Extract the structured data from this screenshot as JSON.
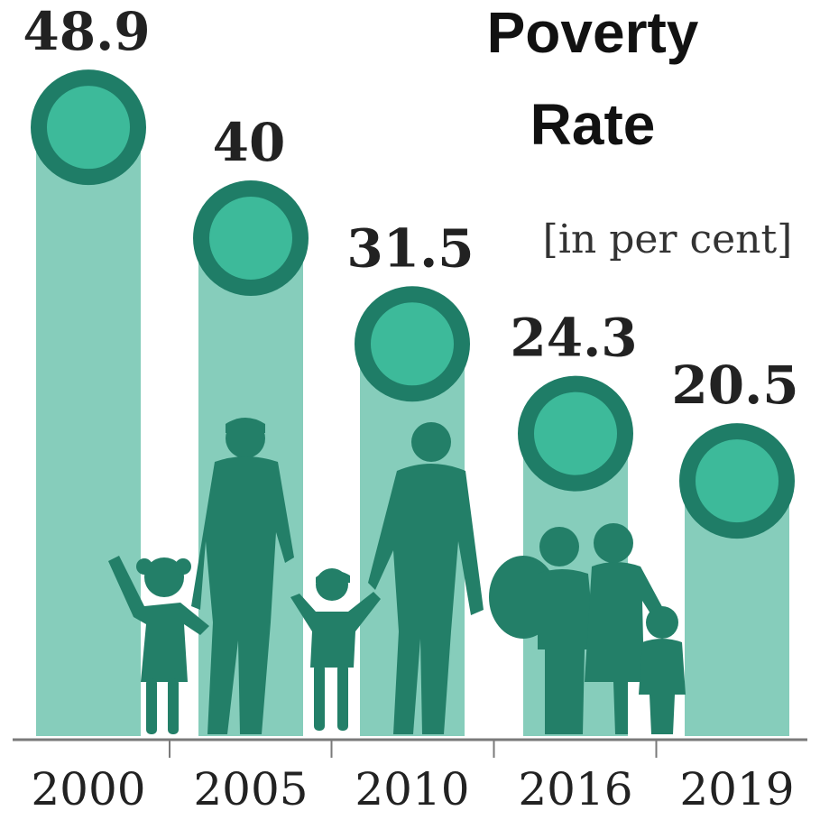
{
  "chart_data": {
    "type": "bar",
    "title_lines": [
      "Poverty",
      "Rate"
    ],
    "subtitle": "[in per cent]",
    "categories": [
      "2000",
      "2005",
      "2010",
      "2016",
      "2019"
    ],
    "values": [
      48.9,
      40,
      31.5,
      24.3,
      20.5
    ],
    "value_labels": [
      "48.9",
      "40",
      "31.5",
      "24.3",
      "20.5"
    ],
    "xlabel": "",
    "ylabel": "",
    "grid": false,
    "legend": "none",
    "colors": {
      "bar": "#86cdbb",
      "circle_ring": "#1f7d67",
      "circle_fill": "#3dba9a",
      "silhouette": "#237f68",
      "axis": "#7a7a7a",
      "text": "#222222"
    }
  }
}
